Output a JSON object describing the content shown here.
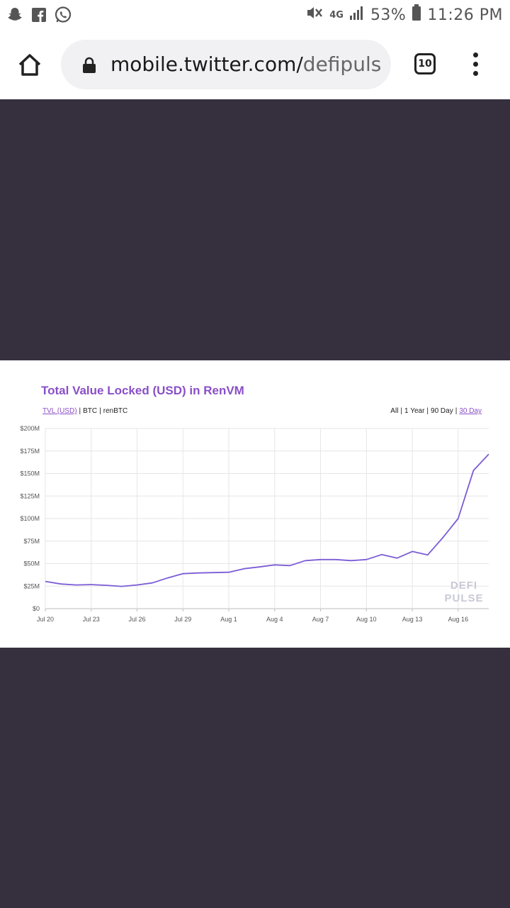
{
  "status_bar": {
    "battery": "53%",
    "time": "11:26 PM",
    "network": "4G",
    "icons": [
      "snapchat-icon",
      "facebook-icon",
      "whatsapp-icon",
      "mute-icon",
      "signal-icon",
      "battery-icon"
    ]
  },
  "browser": {
    "url_host": "mobile.twitter.com/",
    "url_path": "defipuls",
    "tab_count": "10"
  },
  "chart": {
    "title": "Total Value Locked (USD) in RenVM",
    "metrics": [
      "TVL (USD)",
      "BTC",
      "renBTC"
    ],
    "ranges": [
      "All",
      "1 Year",
      "90 Day",
      "30 Day"
    ],
    "watermark_line1": "DEFI",
    "watermark_line2": "PULSE"
  },
  "colors": {
    "accent": "#8a4fc7",
    "dark_bg": "#352f3e",
    "line": "#7b5cd6"
  },
  "chart_data": {
    "type": "line",
    "title": "Total Value Locked (USD) in RenVM",
    "xlabel": "",
    "ylabel": "",
    "ylim": [
      0,
      200
    ],
    "y_ticks": [
      "$0",
      "$25M",
      "$50M",
      "$75M",
      "$100M",
      "$125M",
      "$150M",
      "$175M",
      "$200M"
    ],
    "x_ticks": [
      "Jul 20",
      "Jul 23",
      "Jul 26",
      "Jul 29",
      "Aug 1",
      "Aug 4",
      "Aug 7",
      "Aug 10",
      "Aug 13",
      "Aug 16"
    ],
    "grid": true,
    "series": [
      {
        "values": [
          30.2,
          27.4,
          26.3,
          26.7,
          25.9,
          24.7,
          26.3,
          28.6,
          34.1,
          38.8,
          39.6,
          40.0,
          40.4,
          44.3,
          46.3,
          48.6,
          47.8,
          53.3,
          54.5,
          54.5,
          53.3,
          54.5,
          60.0,
          56.1,
          63.5,
          59.6,
          78.8,
          100.0,
          153.3,
          171.4
        ]
      }
    ]
  }
}
